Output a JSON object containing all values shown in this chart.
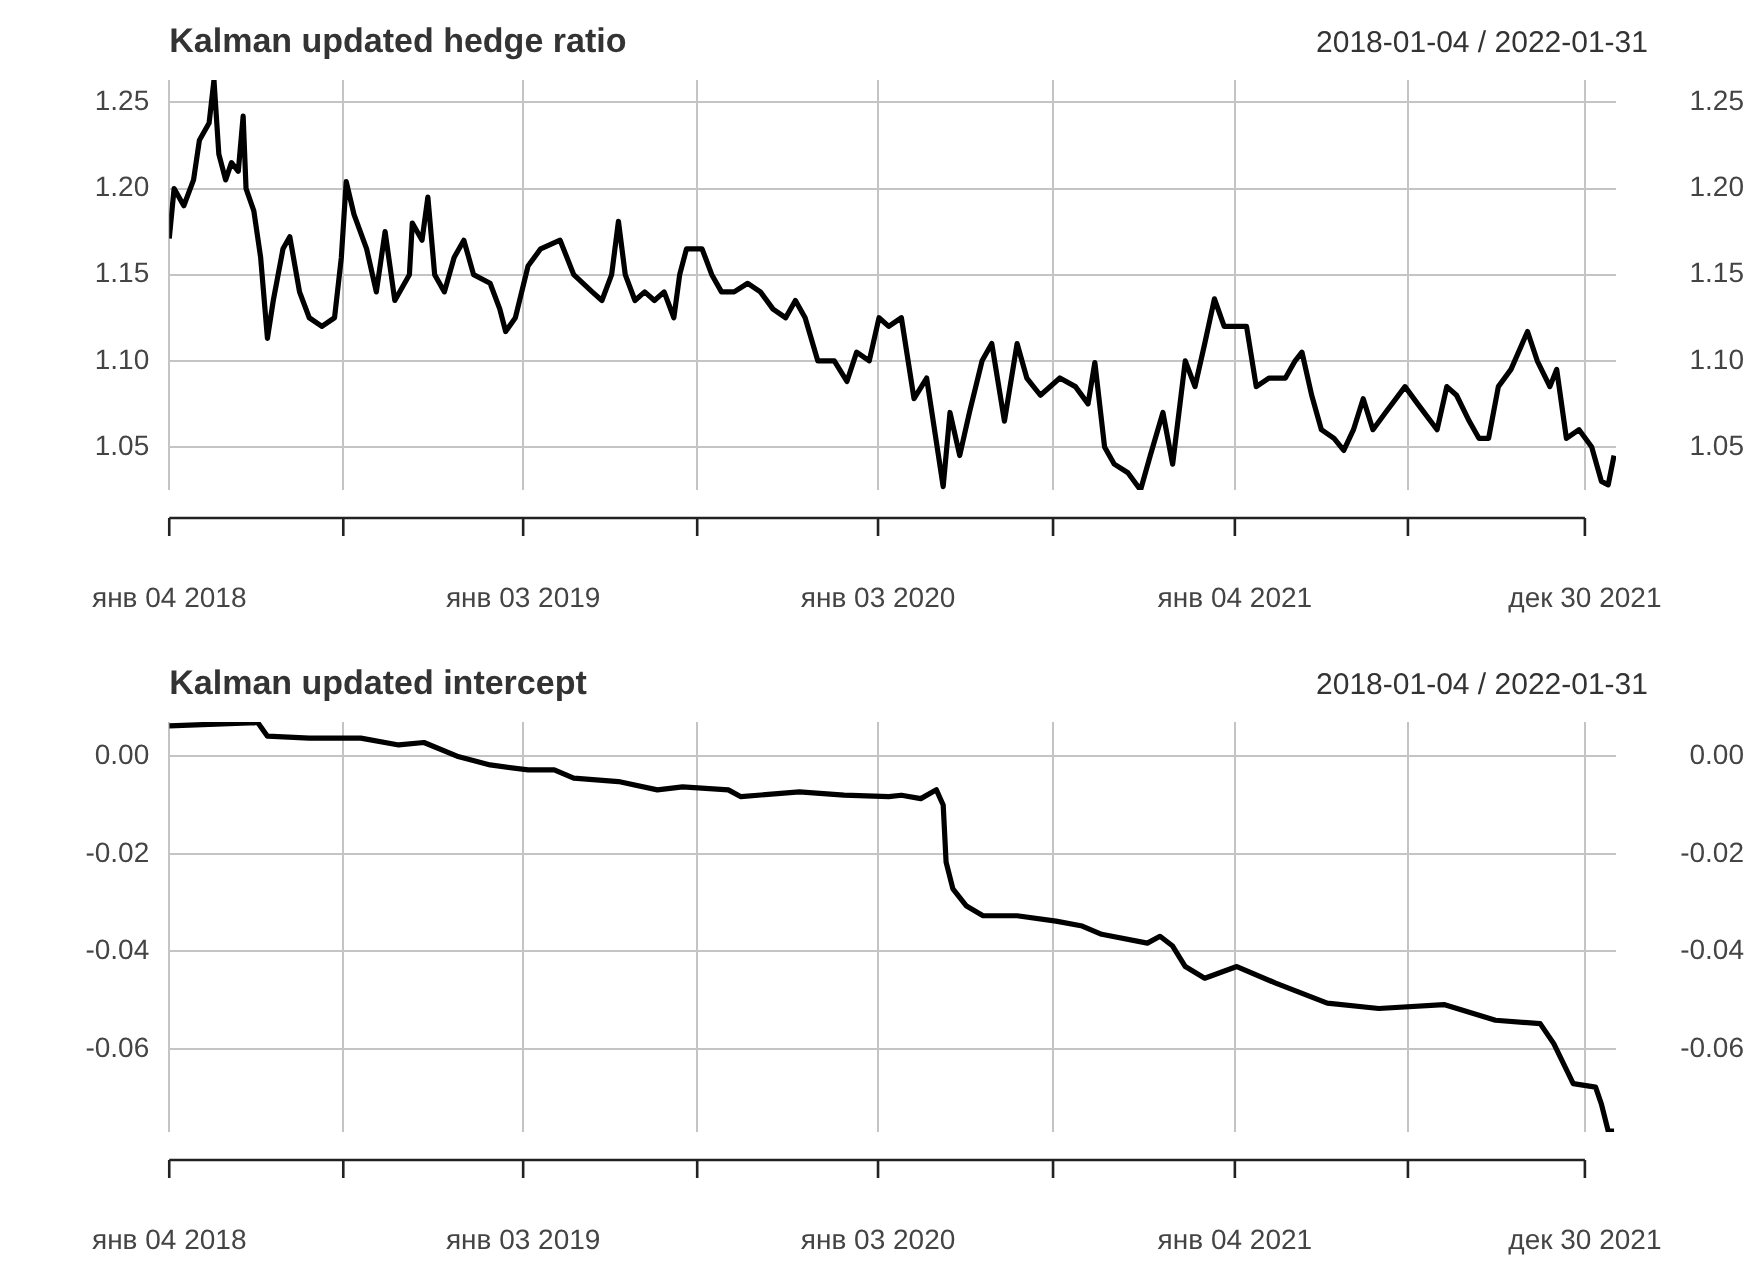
{
  "chart_data": [
    {
      "type": "line",
      "title": "Kalman updated hedge ratio",
      "subtitle": "2018-01-04 / 2022-01-31",
      "grid": true,
      "xlim": [
        "2018-01-04",
        "2022-01-31"
      ],
      "xticks": [
        {
          "value": "2018-01-04",
          "label": "янв 04 2018"
        },
        {
          "value": "2018-07-02",
          "label": null
        },
        {
          "value": "2019-01-03",
          "label": "янв 03 2019"
        },
        {
          "value": "2019-07-01",
          "label": null
        },
        {
          "value": "2020-01-03",
          "label": "янв 03 2020"
        },
        {
          "value": "2020-07-01",
          "label": null
        },
        {
          "value": "2021-01-04",
          "label": "янв 04 2021"
        },
        {
          "value": "2021-07-01",
          "label": null
        },
        {
          "value": "2021-12-30",
          "label": "дек 30 2021"
        }
      ],
      "ylim": [
        1.025,
        1.263
      ],
      "yticks": [
        1.05,
        {
          "value": 1.1,
          "label": "1.10"
        },
        1.15,
        {
          "value": 1.2,
          "label": "1.20"
        },
        1.25
      ],
      "y2lim": [
        1.025,
        1.263
      ],
      "y2ticks": [
        1.05,
        {
          "value": 1.1,
          "label": "1.10"
        },
        1.15,
        {
          "value": 1.2,
          "label": "1.20"
        },
        1.25
      ],
      "x": [
        "2018-01-04",
        "2018-01-09",
        "2018-01-19",
        "2018-01-29",
        "2018-02-04",
        "2018-02-14",
        "2018-02-19",
        "2018-02-24",
        "2018-03-03",
        "2018-03-09",
        "2018-03-16",
        "2018-03-21",
        "2018-03-24",
        "2018-04-01",
        "2018-04-08",
        "2018-04-15",
        "2018-04-21",
        "2018-05-01",
        "2018-05-08",
        "2018-05-18",
        "2018-05-28",
        "2018-06-10",
        "2018-06-23",
        "2018-06-30",
        "2018-07-05",
        "2018-07-13",
        "2018-07-26",
        "2018-08-05",
        "2018-08-14",
        "2018-08-24",
        "2018-09-08",
        "2018-09-11",
        "2018-09-21",
        "2018-09-27",
        "2018-10-04",
        "2018-10-14",
        "2018-10-24",
        "2018-11-03",
        "2018-11-13",
        "2018-11-30",
        "2018-12-10",
        "2018-12-16",
        "2018-12-26",
        "2019-01-08",
        "2019-01-21",
        "2019-02-10",
        "2019-02-24",
        "2019-03-15",
        "2019-03-25",
        "2019-04-04",
        "2019-04-11",
        "2019-04-18",
        "2019-04-28",
        "2019-05-08",
        "2019-05-18",
        "2019-05-28",
        "2019-06-07",
        "2019-06-13",
        "2019-06-20",
        "2019-07-06",
        "2019-07-16",
        "2019-07-26",
        "2019-08-08",
        "2019-08-22",
        "2019-09-04",
        "2019-09-17",
        "2019-09-30",
        "2019-10-10",
        "2019-10-20",
        "2019-11-02",
        "2019-11-19",
        "2019-12-02",
        "2019-12-12",
        "2019-12-25",
        "2020-01-04",
        "2020-01-14",
        "2020-01-27",
        "2020-02-09",
        "2020-02-22",
        "2020-03-10",
        "2020-03-17",
        "2020-03-27",
        "2020-04-06",
        "2020-04-19",
        "2020-04-29",
        "2020-05-12",
        "2020-05-25",
        "2020-06-04",
        "2020-06-18",
        "2020-07-08",
        "2020-07-24",
        "2020-08-06",
        "2020-08-13",
        "2020-08-23",
        "2020-09-02",
        "2020-09-16",
        "2020-09-29",
        "2020-10-09",
        "2020-10-22",
        "2020-11-01",
        "2020-11-14",
        "2020-11-24",
        "2020-12-04",
        "2020-12-14",
        "2020-12-24",
        "2021-01-06",
        "2021-01-16",
        "2021-01-26",
        "2021-02-08",
        "2021-02-25",
        "2021-03-07",
        "2021-03-14",
        "2021-03-24",
        "2021-04-03",
        "2021-04-16",
        "2021-04-26",
        "2021-05-06",
        "2021-05-16",
        "2021-05-26",
        "2021-06-08",
        "2021-06-28",
        "2021-07-11",
        "2021-07-31",
        "2021-08-10",
        "2021-08-20",
        "2021-09-02",
        "2021-09-12",
        "2021-09-22",
        "2021-10-02",
        "2021-10-15",
        "2021-11-01",
        "2021-11-11",
        "2021-11-24",
        "2021-12-01",
        "2021-12-11",
        "2021-12-24",
        "2022-01-06",
        "2022-01-16",
        "2022-01-23",
        "2022-01-29"
      ],
      "series": [
        {
          "color": "#000000",
          "values": [
            1.171,
            1.2,
            1.19,
            1.205,
            1.228,
            1.238,
            1.263,
            1.22,
            1.205,
            1.215,
            1.21,
            1.242,
            1.2,
            1.187,
            1.16,
            1.113,
            1.135,
            1.165,
            1.172,
            1.14,
            1.125,
            1.12,
            1.125,
            1.16,
            1.204,
            1.185,
            1.165,
            1.14,
            1.175,
            1.135,
            1.15,
            1.18,
            1.17,
            1.195,
            1.15,
            1.14,
            1.16,
            1.17,
            1.15,
            1.145,
            1.13,
            1.117,
            1.125,
            1.155,
            1.165,
            1.17,
            1.15,
            1.14,
            1.135,
            1.15,
            1.181,
            1.15,
            1.135,
            1.14,
            1.135,
            1.14,
            1.125,
            1.15,
            1.165,
            1.165,
            1.15,
            1.14,
            1.14,
            1.145,
            1.14,
            1.13,
            1.125,
            1.135,
            1.125,
            1.1,
            1.1,
            1.088,
            1.105,
            1.1,
            1.125,
            1.12,
            1.125,
            1.078,
            1.09,
            1.027,
            1.07,
            1.045,
            1.07,
            1.1,
            1.11,
            1.065,
            1.11,
            1.09,
            1.08,
            1.09,
            1.085,
            1.075,
            1.099,
            1.05,
            1.04,
            1.035,
            1.025,
            1.045,
            1.07,
            1.04,
            1.1,
            1.085,
            1.11,
            1.136,
            1.12,
            1.12,
            1.12,
            1.085,
            1.09,
            1.09,
            1.1,
            1.105,
            1.08,
            1.06,
            1.055,
            1.048,
            1.06,
            1.078,
            1.06,
            1.07,
            1.085,
            1.075,
            1.06,
            1.085,
            1.08,
            1.065,
            1.055,
            1.055,
            1.085,
            1.095,
            1.117,
            1.1,
            1.085,
            1.095,
            1.055,
            1.06,
            1.05,
            1.03,
            1.028,
            1.045
          ]
        }
      ]
    },
    {
      "type": "line",
      "title": "Kalman updated intercept",
      "subtitle": "2018-01-04 / 2022-01-31",
      "grid": true,
      "xlim": [
        "2018-01-04",
        "2022-01-31"
      ],
      "xticks": [
        {
          "value": "2018-01-04",
          "label": "янв 04 2018"
        },
        {
          "value": "2018-07-02",
          "label": null
        },
        {
          "value": "2019-01-03",
          "label": "янв 03 2019"
        },
        {
          "value": "2019-07-01",
          "label": null
        },
        {
          "value": "2020-01-03",
          "label": "янв 03 2020"
        },
        {
          "value": "2020-07-01",
          "label": null
        },
        {
          "value": "2021-01-04",
          "label": "янв 04 2021"
        },
        {
          "value": "2021-07-01",
          "label": null
        },
        {
          "value": "2021-12-30",
          "label": "дек 30 2021"
        }
      ],
      "ylim": [
        -0.077,
        0.007
      ],
      "yticks": [
        {
          "value": -0.06,
          "label": "-0.06"
        },
        {
          "value": -0.04,
          "label": "-0.04"
        },
        {
          "value": -0.02,
          "label": "-0.02"
        },
        {
          "value": 0,
          "label": "0.00"
        }
      ],
      "y2lim": [
        -0.077,
        0.007
      ],
      "y2ticks": [
        {
          "value": -0.06,
          "label": "-0.06"
        },
        {
          "value": -0.04,
          "label": "-0.04"
        },
        {
          "value": -0.02,
          "label": "-0.02"
        },
        {
          "value": 0,
          "label": "0.00"
        }
      ],
      "x": [
        "2018-01-04",
        "2018-04-05",
        "2018-04-15",
        "2018-05-28",
        "2018-07-20",
        "2018-08-28",
        "2018-09-23",
        "2018-10-27",
        "2018-11-30",
        "2019-01-08",
        "2019-02-04",
        "2019-02-24",
        "2019-04-11",
        "2019-05-21",
        "2019-06-16",
        "2019-08-02",
        "2019-08-15",
        "2019-10-14",
        "2019-11-29",
        "2020-01-14",
        "2020-01-27",
        "2020-02-16",
        "2020-03-03",
        "2020-03-10",
        "2020-03-13",
        "2020-03-20",
        "2020-04-03",
        "2020-04-20",
        "2020-05-25",
        "2020-07-04",
        "2020-07-31",
        "2020-08-20",
        "2020-10-06",
        "2020-10-19",
        "2020-11-01",
        "2020-11-14",
        "2020-12-04",
        "2021-01-06",
        "2021-02-15",
        "2021-04-09",
        "2021-06-01",
        "2021-08-07",
        "2021-09-29",
        "2021-11-14",
        "2021-11-28",
        "2021-12-18",
        "2022-01-10",
        "2022-01-16",
        "2022-01-23",
        "2022-01-29"
      ],
      "series": [
        {
          "color": "#000000",
          "values": [
            0.0062,
            0.0069,
            0.0041,
            0.0037,
            0.0037,
            0.0023,
            0.0028,
            0.0,
            -0.0018,
            -0.0028,
            -0.0028,
            -0.0045,
            -0.0052,
            -0.0069,
            -0.0063,
            -0.0069,
            -0.0083,
            -0.0073,
            -0.008,
            -0.0083,
            -0.008,
            -0.0087,
            -0.0069,
            -0.01,
            -0.0217,
            -0.0272,
            -0.0307,
            -0.0327,
            -0.0327,
            -0.0338,
            -0.0348,
            -0.0365,
            -0.0383,
            -0.0369,
            -0.0389,
            -0.0431,
            -0.0455,
            -0.0431,
            -0.0465,
            -0.0506,
            -0.0517,
            -0.0509,
            -0.0541,
            -0.0548,
            -0.0589,
            -0.0671,
            -0.0678,
            -0.0713,
            -0.0768,
            -0.0768
          ]
        }
      ]
    }
  ]
}
